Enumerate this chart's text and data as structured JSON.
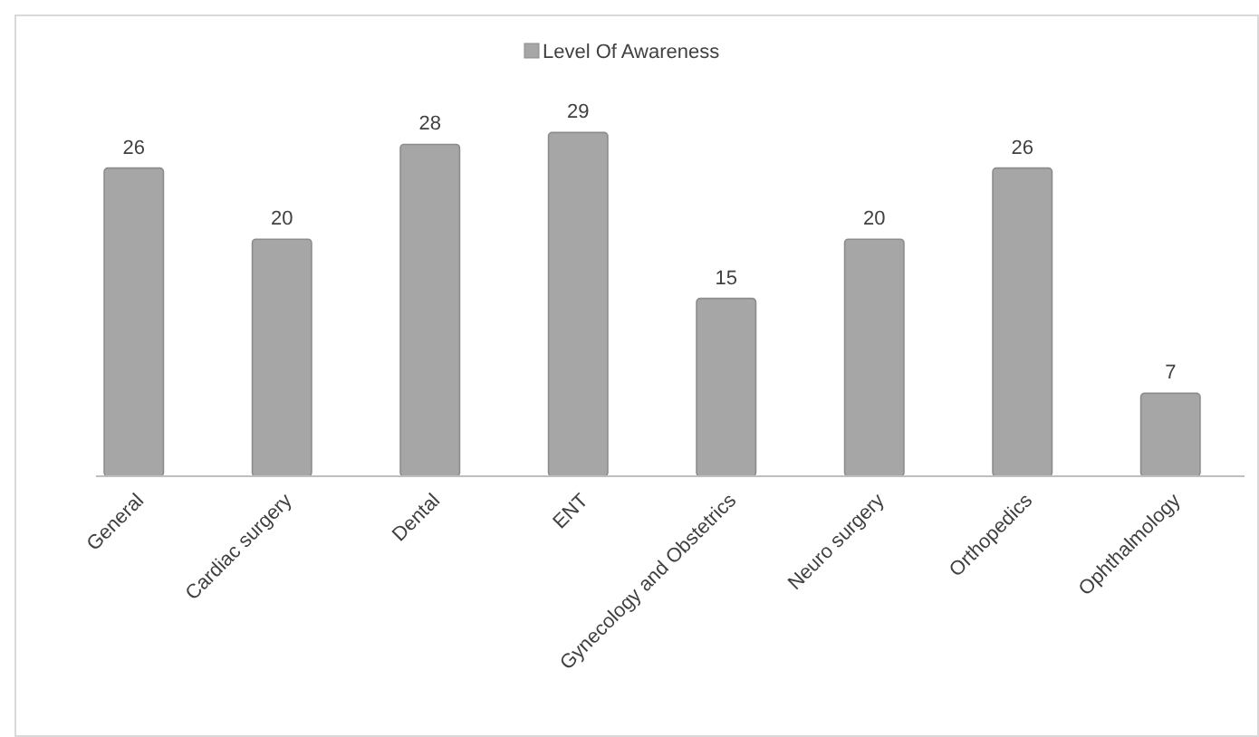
{
  "chart_data": {
    "type": "bar",
    "categories": [
      "General",
      "Cardiac  surgery",
      "Dental",
      "ENT",
      "Gynecology and Obstetrics",
      "Neuro surgery",
      "Orthopedics",
      "Ophthalmology"
    ],
    "series": [
      {
        "name": "Level Of Awareness",
        "color": "#a6a6a6",
        "values": [
          26,
          20,
          28,
          29,
          15,
          20,
          26,
          7
        ]
      }
    ],
    "data_labels": true,
    "legend": "top",
    "grid": false
  }
}
